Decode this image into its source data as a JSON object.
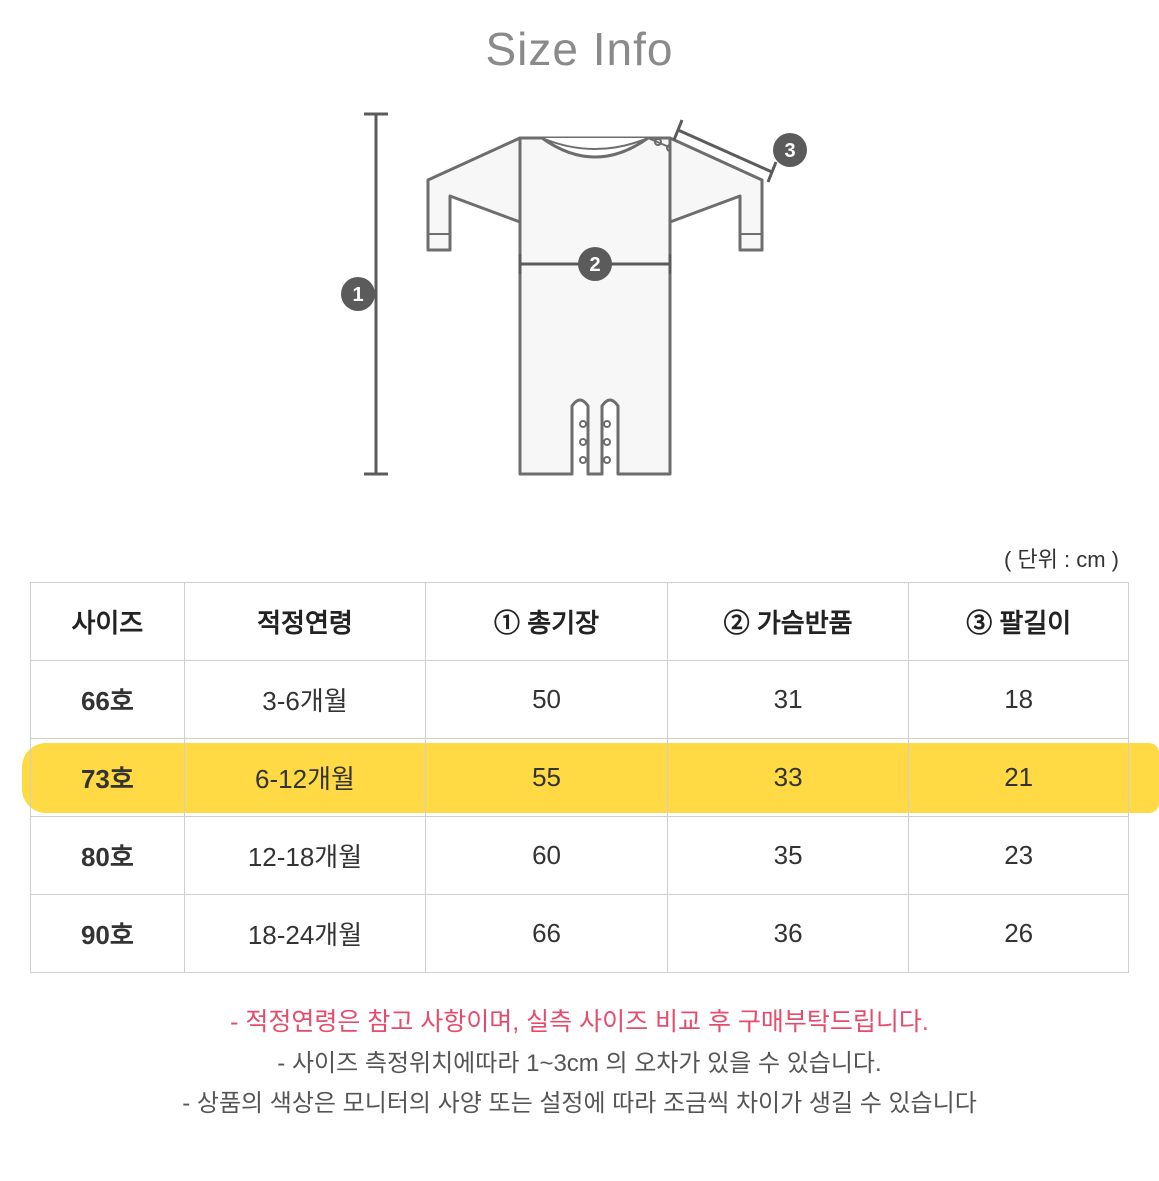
{
  "title": "Size Info",
  "unit_label": "( 단위 : cm )",
  "diagram": {
    "markers": {
      "m1": "1",
      "m2": "2",
      "m3": "3"
    },
    "marker_bg": "#5b5b5b",
    "marker_fg": "#ffffff",
    "line_color": "#5b5b5b",
    "outline_color": "#6d6d6d",
    "garment_fill": "#f7f7f7"
  },
  "table": {
    "columns": [
      "사이즈",
      "적정연령",
      "① 총기장",
      "② 가슴반품",
      "③ 팔길이"
    ],
    "col_widths_pct": [
      14,
      22,
      22,
      22,
      20
    ],
    "rows": [
      [
        "66호",
        "3-6개월",
        "50",
        "31",
        "18"
      ],
      [
        "73호",
        "6-12개월",
        "55",
        "33",
        "21"
      ],
      [
        "80호",
        "12-18개월",
        "60",
        "35",
        "23"
      ],
      [
        "90호",
        "18-24개월",
        "66",
        "36",
        "26"
      ]
    ],
    "highlight_row_index": 1,
    "highlight_color": "#ffd83a",
    "border_color": "#cfcfcf"
  },
  "notes": [
    {
      "text": "- 적정연령은 참고 사항이며, 실측 사이즈 비교 후 구매부탁드립니다.",
      "warn": true
    },
    {
      "text": "- 사이즈 측정위치에따라 1~3cm 의 오차가 있을 수 있습니다.",
      "warn": false
    },
    {
      "text": "- 상품의 색상은 모니터의 사양 또는 설정에 따라 조금씩 차이가 생길 수 있습니다",
      "warn": false
    }
  ]
}
